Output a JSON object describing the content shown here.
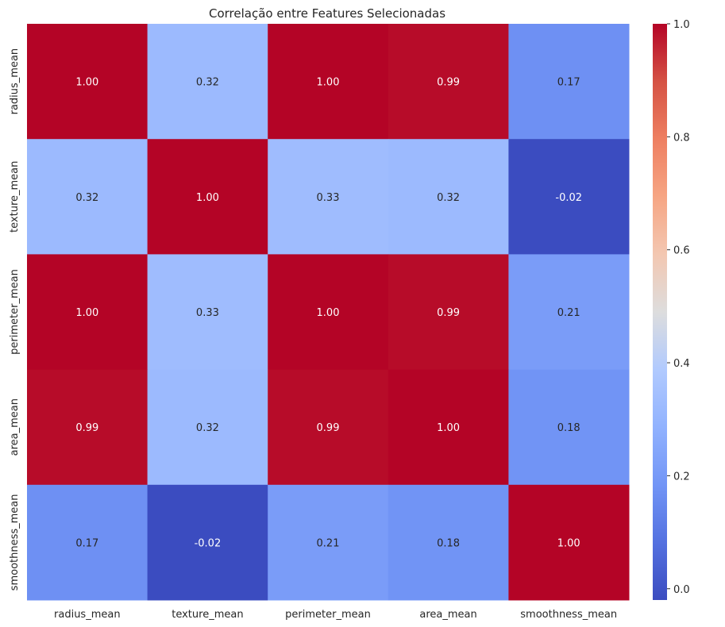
{
  "chart_data": {
    "type": "heatmap",
    "title": "Correlação entre Features Selecionadas",
    "xlabel": "",
    "ylabel": "",
    "x_categories": [
      "radius_mean",
      "texture_mean",
      "perimeter_mean",
      "area_mean",
      "smoothness_mean"
    ],
    "y_categories": [
      "radius_mean",
      "texture_mean",
      "perimeter_mean",
      "area_mean",
      "smoothness_mean"
    ],
    "values": [
      [
        1.0,
        0.32,
        1.0,
        0.99,
        0.17
      ],
      [
        0.32,
        1.0,
        0.33,
        0.32,
        -0.02
      ],
      [
        1.0,
        0.33,
        1.0,
        0.99,
        0.21
      ],
      [
        0.99,
        0.32,
        0.99,
        1.0,
        0.18
      ],
      [
        0.17,
        -0.02,
        0.21,
        0.18,
        1.0
      ]
    ],
    "annotation_format": "0.00",
    "colormap": "coolwarm",
    "color_range": [
      -0.02,
      1.0
    ],
    "colorbar_ticks": [
      0.0,
      0.2,
      0.4,
      0.6,
      0.8,
      1.0
    ],
    "colorbar_tick_labels": [
      "0.0",
      "0.2",
      "0.4",
      "0.6",
      "0.8",
      "1.0"
    ],
    "colorbar_placement": "right"
  }
}
